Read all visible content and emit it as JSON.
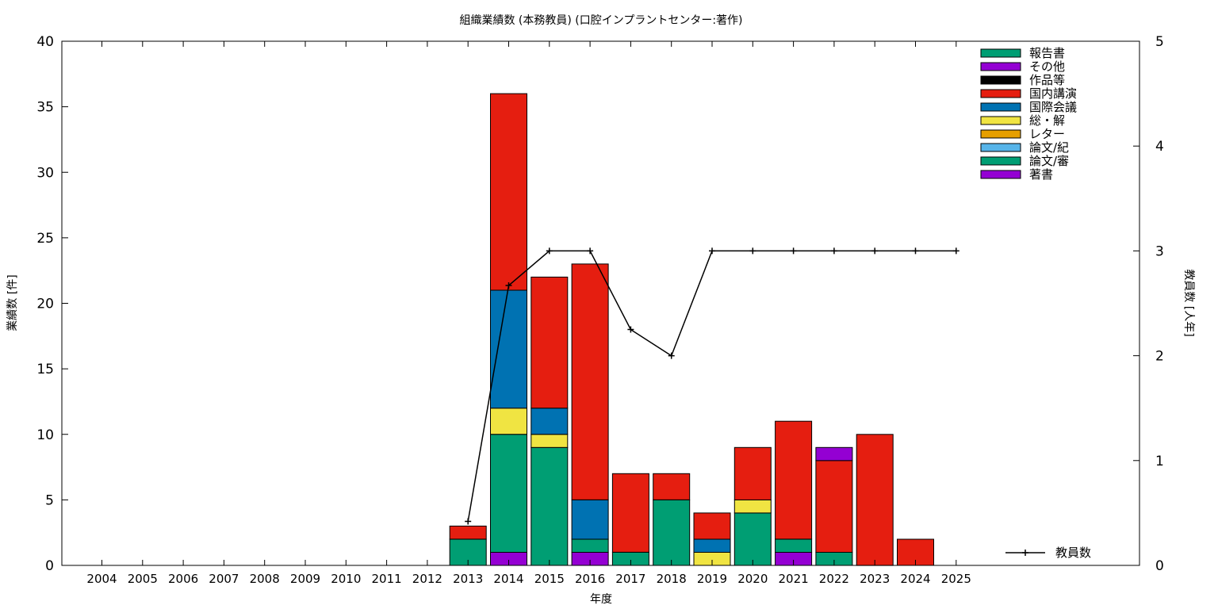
{
  "chart_data": {
    "type": "bar",
    "stacked": true,
    "title": "組織業績数 (本務教員) (口腔インプラントセンター:著作)",
    "xlabel": "年度",
    "ylabel": "業績数 [件]",
    "y2label": "教員数 [人年]",
    "ylim": [
      0,
      40
    ],
    "y2lim": [
      0,
      5
    ],
    "yticks": [
      "0",
      "5",
      "10",
      "15",
      "20",
      "25",
      "30",
      "35",
      "40"
    ],
    "y2ticks": [
      "0",
      "1",
      "2",
      "3",
      "4",
      "5"
    ],
    "grid": false,
    "legend_position": "top-right",
    "categories": [
      "2004",
      "2005",
      "2006",
      "2007",
      "2008",
      "2009",
      "2010",
      "2011",
      "2012",
      "2013",
      "2014",
      "2015",
      "2016",
      "2017",
      "2018",
      "2019",
      "2020",
      "2021",
      "2022",
      "2023",
      "2024",
      "2025"
    ],
    "series": [
      {
        "name": "著書",
        "color": "#9400d3",
        "values": [
          0,
          0,
          0,
          0,
          0,
          0,
          0,
          0,
          0,
          0,
          1,
          0,
          1,
          0,
          0,
          0,
          0,
          1,
          0,
          0,
          0,
          0
        ]
      },
      {
        "name": "論文/審",
        "color": "#009e73",
        "values": [
          0,
          0,
          0,
          0,
          0,
          0,
          0,
          0,
          0,
          2,
          9,
          9,
          1,
          1,
          5,
          0,
          4,
          1,
          1,
          0,
          0,
          0
        ]
      },
      {
        "name": "論文/紀",
        "color": "#56b4e9",
        "values": [
          0,
          0,
          0,
          0,
          0,
          0,
          0,
          0,
          0,
          0,
          0,
          0,
          0,
          0,
          0,
          0,
          0,
          0,
          0,
          0,
          0,
          0
        ]
      },
      {
        "name": "レター",
        "color": "#e69f00",
        "values": [
          0,
          0,
          0,
          0,
          0,
          0,
          0,
          0,
          0,
          0,
          0,
          0,
          0,
          0,
          0,
          0,
          0,
          0,
          0,
          0,
          0,
          0
        ]
      },
      {
        "name": "総・解",
        "color": "#f0e442",
        "values": [
          0,
          0,
          0,
          0,
          0,
          0,
          0,
          0,
          0,
          0,
          2,
          1,
          0,
          0,
          0,
          1,
          1,
          0,
          0,
          0,
          0,
          0
        ]
      },
      {
        "name": "国際会議",
        "color": "#0072b2",
        "values": [
          0,
          0,
          0,
          0,
          0,
          0,
          0,
          0,
          0,
          0,
          9,
          2,
          3,
          0,
          0,
          1,
          0,
          0,
          0,
          0,
          0,
          0
        ]
      },
      {
        "name": "国内講演",
        "color": "#e51e10",
        "values": [
          0,
          0,
          0,
          0,
          0,
          0,
          0,
          0,
          0,
          1,
          15,
          10,
          18,
          6,
          2,
          2,
          4,
          9,
          7,
          10,
          2,
          0
        ]
      },
      {
        "name": "作品等",
        "color": "#000000",
        "values": [
          0,
          0,
          0,
          0,
          0,
          0,
          0,
          0,
          0,
          0,
          0,
          0,
          0,
          0,
          0,
          0,
          0,
          0,
          0,
          0,
          0,
          0
        ]
      },
      {
        "name": "その他",
        "color": "#9400d3",
        "values": [
          0,
          0,
          0,
          0,
          0,
          0,
          0,
          0,
          0,
          0,
          0,
          0,
          0,
          0,
          0,
          0,
          0,
          0,
          1,
          0,
          0,
          0
        ]
      },
      {
        "name": "報告書",
        "color": "#009e73",
        "values": [
          0,
          0,
          0,
          0,
          0,
          0,
          0,
          0,
          0,
          0,
          0,
          0,
          0,
          0,
          0,
          0,
          0,
          0,
          0,
          0,
          0,
          0
        ]
      }
    ],
    "line": {
      "name": "教員数",
      "color": "#000000",
      "axis": "y2",
      "x": [
        "2013",
        "2014",
        "2015",
        "2016",
        "2017",
        "2018",
        "2019",
        "2020",
        "2021",
        "2022",
        "2023",
        "2024",
        "2025"
      ],
      "values": [
        0.42,
        2.67,
        3,
        3,
        2.25,
        2,
        3,
        3,
        3,
        3,
        3,
        3,
        3
      ]
    }
  }
}
